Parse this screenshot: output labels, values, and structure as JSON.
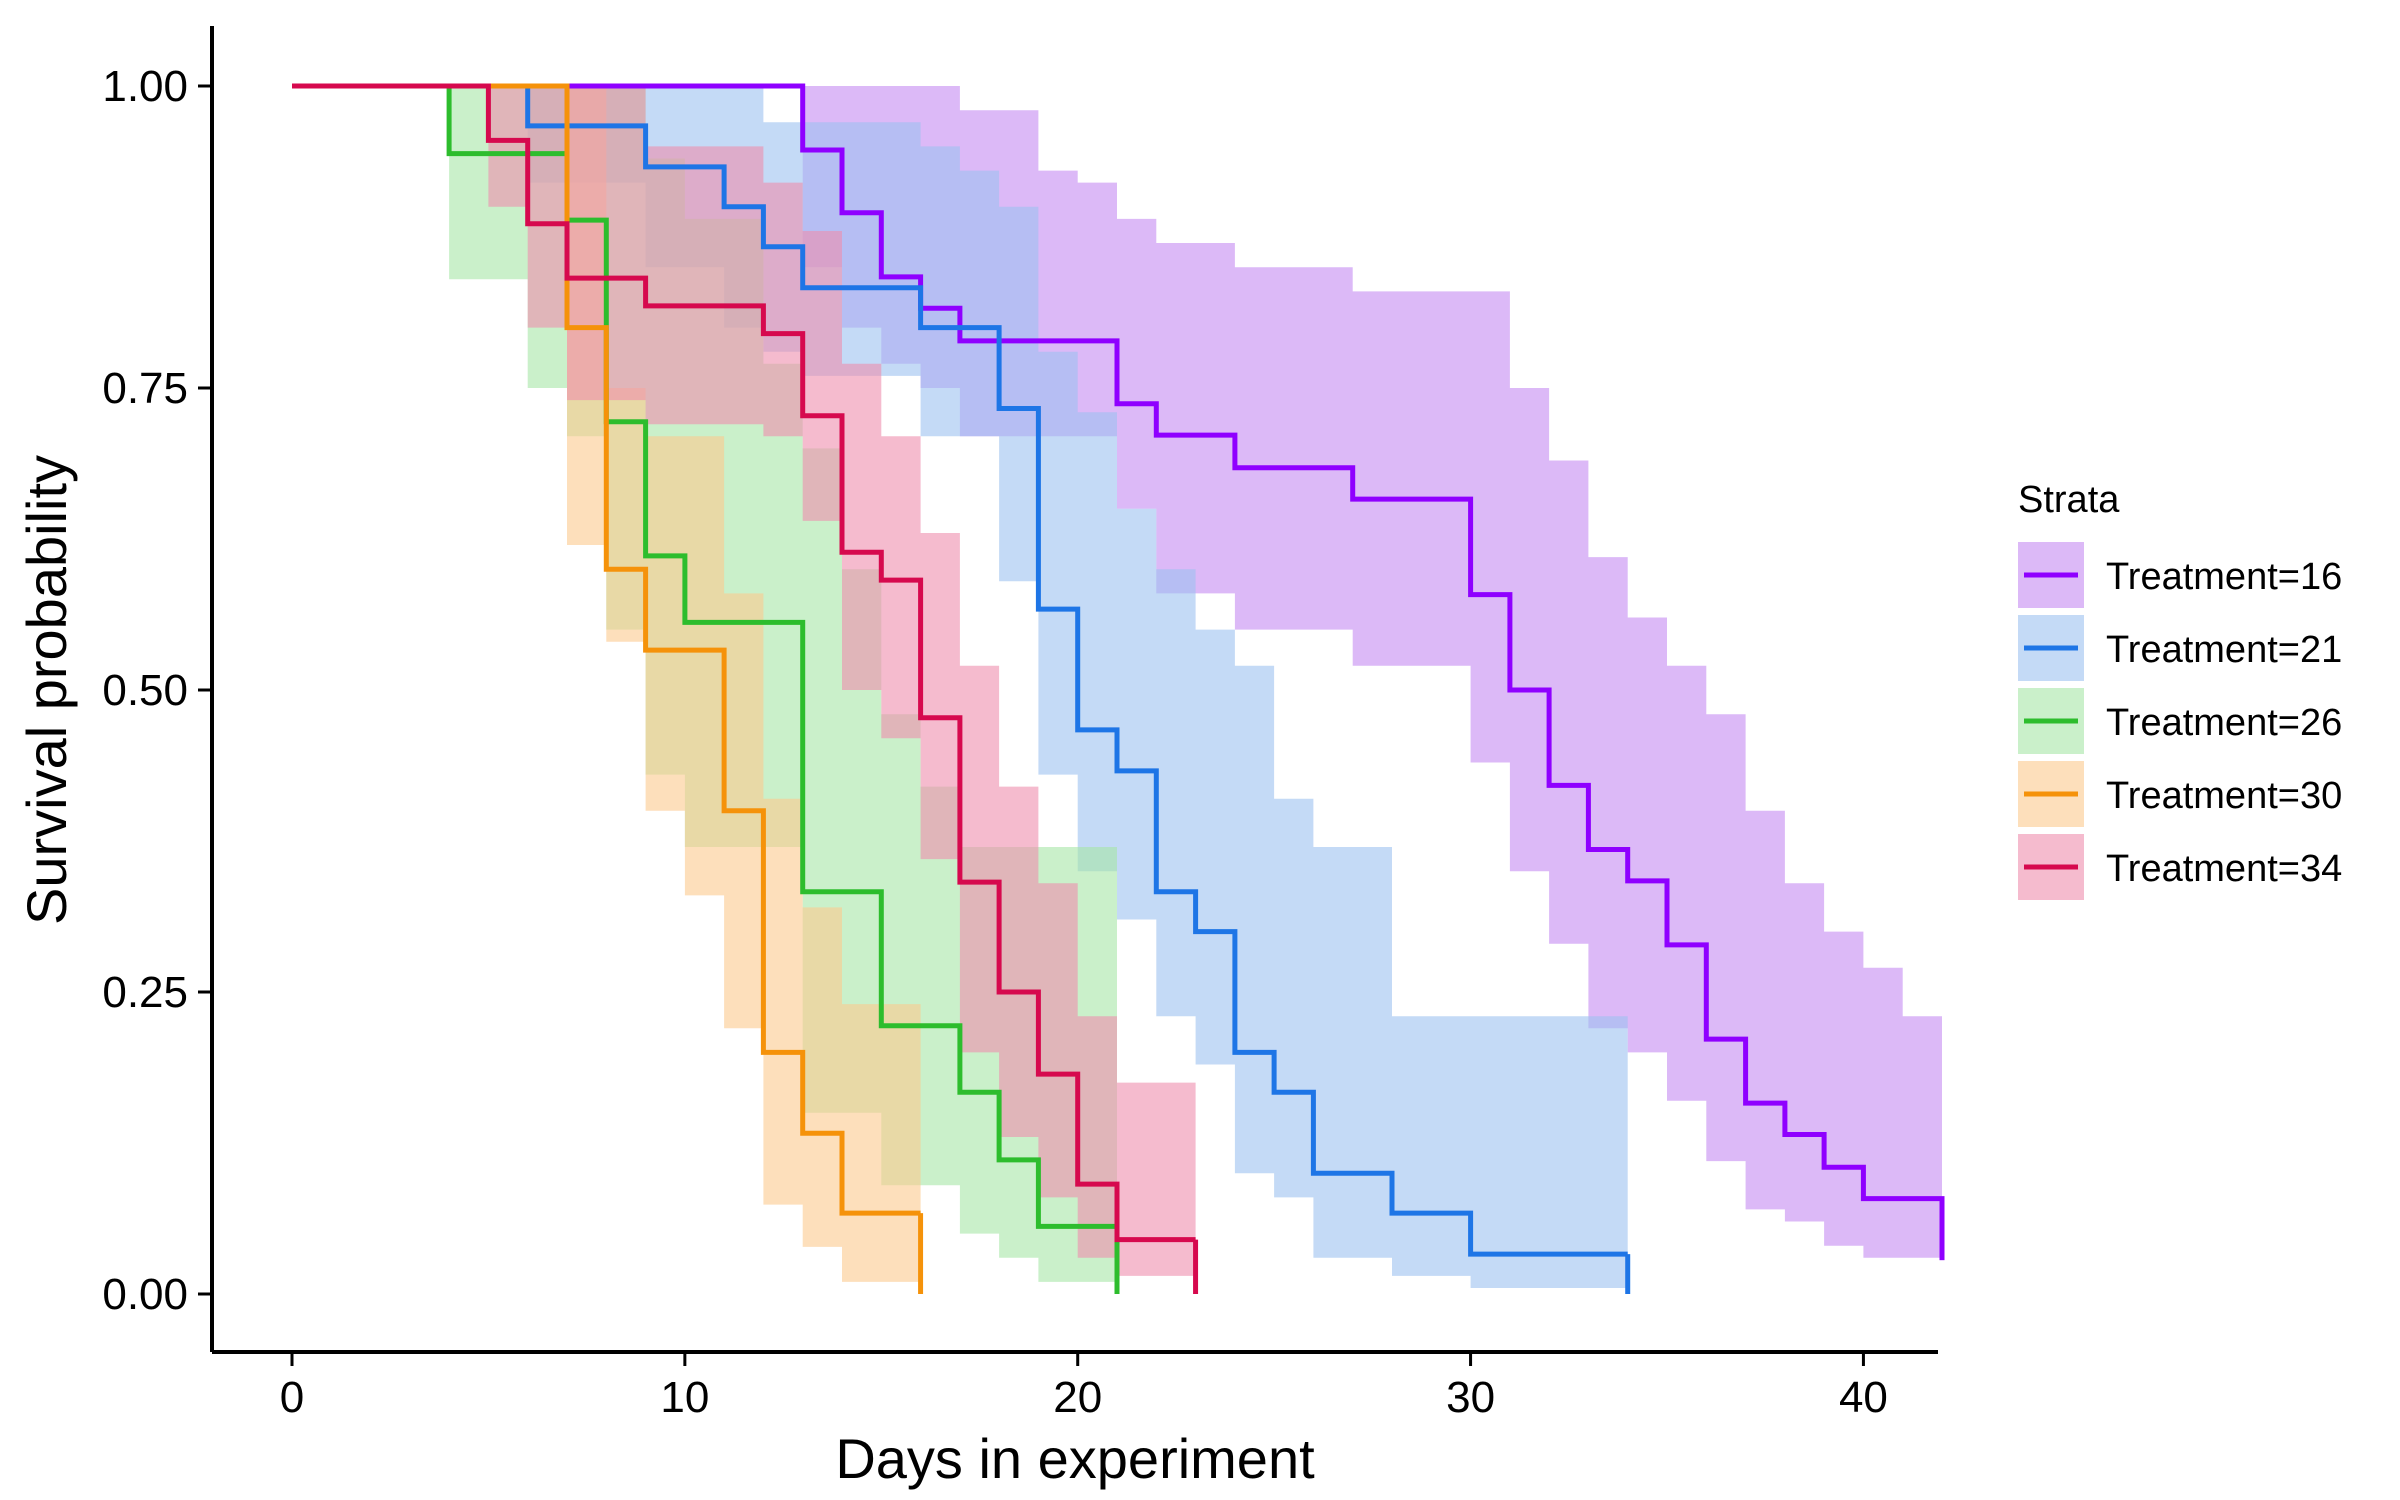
{
  "chart_data": {
    "type": "line",
    "chart_kind": "kaplan-meier survival curves with confidence bands",
    "xlabel": "Days in experiment",
    "ylabel": "Survival probability",
    "xlim": [
      0,
      42
    ],
    "ylim": [
      0,
      1
    ],
    "x_ticks": [
      0,
      10,
      20,
      30,
      40
    ],
    "x_tick_labels": [
      "0",
      "10",
      "20",
      "30",
      "40"
    ],
    "y_ticks": [
      0,
      0.25,
      0.5,
      0.75,
      1
    ],
    "y_tick_labels": [
      "0.00",
      "0.25",
      "0.50",
      "0.75",
      "1.00"
    ],
    "grid": false,
    "legend": {
      "title": "Strata",
      "position": "right"
    },
    "series": [
      {
        "name": "Treatment=16",
        "color": "#8F00FF",
        "band_color": "#C58AF2",
        "points": [
          [
            0,
            1.0
          ],
          [
            13,
            0.947
          ],
          [
            14,
            0.895
          ],
          [
            15,
            0.842
          ],
          [
            16,
            0.816
          ],
          [
            17,
            0.789
          ],
          [
            21,
            0.737
          ],
          [
            22,
            0.711
          ],
          [
            24,
            0.684
          ],
          [
            27,
            0.658
          ],
          [
            30,
            0.579
          ],
          [
            31,
            0.5
          ],
          [
            32,
            0.421
          ],
          [
            33,
            0.368
          ],
          [
            34,
            0.342
          ],
          [
            35,
            0.289
          ],
          [
            36,
            0.211
          ],
          [
            37,
            0.158
          ],
          [
            38,
            0.132
          ],
          [
            39,
            0.105
          ],
          [
            40,
            0.079
          ],
          [
            42,
            0.053
          ]
        ],
        "upper": [
          [
            0,
            1.0
          ],
          [
            13,
            1.0
          ],
          [
            15,
            1.0
          ],
          [
            17,
            0.98
          ],
          [
            19,
            0.93
          ],
          [
            20,
            0.92
          ],
          [
            21,
            0.89
          ],
          [
            22,
            0.87
          ],
          [
            24,
            0.85
          ],
          [
            27,
            0.83
          ],
          [
            30,
            0.83
          ],
          [
            31,
            0.75
          ],
          [
            32,
            0.69
          ],
          [
            33,
            0.61
          ],
          [
            34,
            0.56
          ],
          [
            35,
            0.52
          ],
          [
            36,
            0.48
          ],
          [
            37,
            0.4
          ],
          [
            38,
            0.34
          ],
          [
            39,
            0.3
          ],
          [
            40,
            0.27
          ],
          [
            41,
            0.23
          ],
          [
            42,
            0.23
          ]
        ],
        "lower": [
          [
            0,
            1.0
          ],
          [
            13,
            0.85
          ],
          [
            14,
            0.8
          ],
          [
            15,
            0.77
          ],
          [
            16,
            0.75
          ],
          [
            17,
            0.71
          ],
          [
            21,
            0.65
          ],
          [
            22,
            0.58
          ],
          [
            24,
            0.55
          ],
          [
            27,
            0.52
          ],
          [
            30,
            0.44
          ],
          [
            31,
            0.35
          ],
          [
            32,
            0.29
          ],
          [
            33,
            0.22
          ],
          [
            34,
            0.2
          ],
          [
            35,
            0.16
          ],
          [
            36,
            0.11
          ],
          [
            37,
            0.07
          ],
          [
            38,
            0.06
          ],
          [
            39,
            0.04
          ],
          [
            40,
            0.03
          ],
          [
            42,
            0.03
          ]
        ],
        "end": 42
      },
      {
        "name": "Treatment=21",
        "color": "#1E75E6",
        "band_color": "#9CC2F0",
        "points": [
          [
            0,
            1.0
          ],
          [
            6,
            0.967
          ],
          [
            9,
            0.933
          ],
          [
            11,
            0.9
          ],
          [
            12,
            0.867
          ],
          [
            13,
            0.833
          ],
          [
            16,
            0.8
          ],
          [
            18,
            0.733
          ],
          [
            19,
            0.567
          ],
          [
            20,
            0.467
          ],
          [
            21,
            0.433
          ],
          [
            22,
            0.333
          ],
          [
            23,
            0.3
          ],
          [
            24,
            0.2
          ],
          [
            25,
            0.167
          ],
          [
            26,
            0.1
          ],
          [
            28,
            0.067
          ],
          [
            30,
            0.033
          ]
        ],
        "upper": [
          [
            0,
            1.0
          ],
          [
            6,
            1.0
          ],
          [
            9,
            1.0
          ],
          [
            12,
            0.97
          ],
          [
            16,
            0.95
          ],
          [
            17,
            0.93
          ],
          [
            18,
            0.9
          ],
          [
            19,
            0.78
          ],
          [
            20,
            0.73
          ],
          [
            21,
            0.65
          ],
          [
            22,
            0.6
          ],
          [
            23,
            0.55
          ],
          [
            24,
            0.52
          ],
          [
            25,
            0.41
          ],
          [
            26,
            0.37
          ],
          [
            28,
            0.23
          ],
          [
            30,
            0.23
          ],
          [
            34,
            0.23
          ]
        ],
        "lower": [
          [
            0,
            1.0
          ],
          [
            6,
            0.92
          ],
          [
            9,
            0.85
          ],
          [
            11,
            0.8
          ],
          [
            12,
            0.78
          ],
          [
            13,
            0.76
          ],
          [
            16,
            0.71
          ],
          [
            18,
            0.59
          ],
          [
            19,
            0.43
          ],
          [
            20,
            0.35
          ],
          [
            21,
            0.31
          ],
          [
            22,
            0.23
          ],
          [
            23,
            0.19
          ],
          [
            24,
            0.1
          ],
          [
            25,
            0.08
          ],
          [
            26,
            0.03
          ],
          [
            28,
            0.015
          ],
          [
            30,
            0.005
          ],
          [
            34,
            0.005
          ]
        ],
        "end": 34
      },
      {
        "name": "Treatment=26",
        "color": "#2DBD2D",
        "band_color": "#A7E6A7",
        "points": [
          [
            0,
            1.0
          ],
          [
            4,
            0.944
          ],
          [
            6,
            0.944
          ],
          [
            7,
            0.889
          ],
          [
            8,
            0.722
          ],
          [
            9,
            0.611
          ],
          [
            10,
            0.556
          ],
          [
            13,
            0.333
          ],
          [
            15,
            0.222
          ],
          [
            17,
            0.167
          ],
          [
            18,
            0.111
          ],
          [
            19,
            0.056
          ]
        ],
        "upper": [
          [
            0,
            1.0
          ],
          [
            4,
            1.0
          ],
          [
            8,
            1.0
          ],
          [
            9,
            0.94
          ],
          [
            10,
            0.89
          ],
          [
            12,
            0.77
          ],
          [
            13,
            0.7
          ],
          [
            14,
            0.6
          ],
          [
            15,
            0.48
          ],
          [
            16,
            0.42
          ],
          [
            17,
            0.37
          ],
          [
            18,
            0.37
          ],
          [
            19,
            0.37
          ],
          [
            21,
            0.37
          ]
        ],
        "lower": [
          [
            0,
            1.0
          ],
          [
            4,
            0.84
          ],
          [
            6,
            0.75
          ],
          [
            7,
            0.71
          ],
          [
            8,
            0.55
          ],
          [
            9,
            0.43
          ],
          [
            10,
            0.37
          ],
          [
            13,
            0.15
          ],
          [
            15,
            0.09
          ],
          [
            17,
            0.05
          ],
          [
            18,
            0.03
          ],
          [
            19,
            0.01
          ],
          [
            21,
            0.01
          ]
        ],
        "end": 21
      },
      {
        "name": "Treatment=30",
        "color": "#F5920A",
        "band_color": "#FBC98E",
        "points": [
          [
            0,
            1.0
          ],
          [
            7,
            0.8
          ],
          [
            8,
            0.6
          ],
          [
            9,
            0.533
          ],
          [
            11,
            0.4
          ],
          [
            12,
            0.2
          ],
          [
            13,
            0.133
          ],
          [
            14,
            0.067
          ]
        ],
        "upper": [
          [
            0,
            1.0
          ],
          [
            7,
            1.0
          ],
          [
            8,
            0.75
          ],
          [
            9,
            0.71
          ],
          [
            11,
            0.58
          ],
          [
            12,
            0.41
          ],
          [
            13,
            0.32
          ],
          [
            14,
            0.24
          ],
          [
            16,
            0.24
          ]
        ],
        "lower": [
          [
            0,
            1.0
          ],
          [
            7,
            0.62
          ],
          [
            8,
            0.54
          ],
          [
            9,
            0.4
          ],
          [
            10,
            0.33
          ],
          [
            11,
            0.22
          ],
          [
            12,
            0.074
          ],
          [
            13,
            0.039
          ],
          [
            14,
            0.01
          ],
          [
            16,
            0.01
          ]
        ],
        "end": 16
      },
      {
        "name": "Treatment=34",
        "color": "#D6094E",
        "band_color": "#EE8EAE",
        "points": [
          [
            0,
            1.0
          ],
          [
            5,
            0.955
          ],
          [
            6,
            0.886
          ],
          [
            7,
            0.841
          ],
          [
            9,
            0.818
          ],
          [
            12,
            0.795
          ],
          [
            13,
            0.727
          ],
          [
            14,
            0.614
          ],
          [
            15,
            0.591
          ],
          [
            16,
            0.477
          ],
          [
            17,
            0.341
          ],
          [
            18,
            0.25
          ],
          [
            19,
            0.182
          ],
          [
            20,
            0.091
          ],
          [
            21,
            0.045
          ]
        ],
        "upper": [
          [
            0,
            1.0
          ],
          [
            5,
            1.0
          ],
          [
            9,
            0.95
          ],
          [
            12,
            0.92
          ],
          [
            13,
            0.88
          ],
          [
            14,
            0.77
          ],
          [
            15,
            0.71
          ],
          [
            16,
            0.63
          ],
          [
            17,
            0.52
          ],
          [
            18,
            0.42
          ],
          [
            19,
            0.34
          ],
          [
            20,
            0.23
          ],
          [
            21,
            0.175
          ],
          [
            23,
            0.175
          ]
        ],
        "lower": [
          [
            0,
            1.0
          ],
          [
            5,
            0.9
          ],
          [
            6,
            0.8
          ],
          [
            7,
            0.74
          ],
          [
            9,
            0.72
          ],
          [
            12,
            0.71
          ],
          [
            13,
            0.64
          ],
          [
            14,
            0.5
          ],
          [
            15,
            0.46
          ],
          [
            16,
            0.36
          ],
          [
            17,
            0.2
          ],
          [
            18,
            0.13
          ],
          [
            19,
            0.08
          ],
          [
            20,
            0.03
          ],
          [
            21,
            0.015
          ],
          [
            23,
            0.015
          ]
        ],
        "end": 23
      }
    ]
  }
}
